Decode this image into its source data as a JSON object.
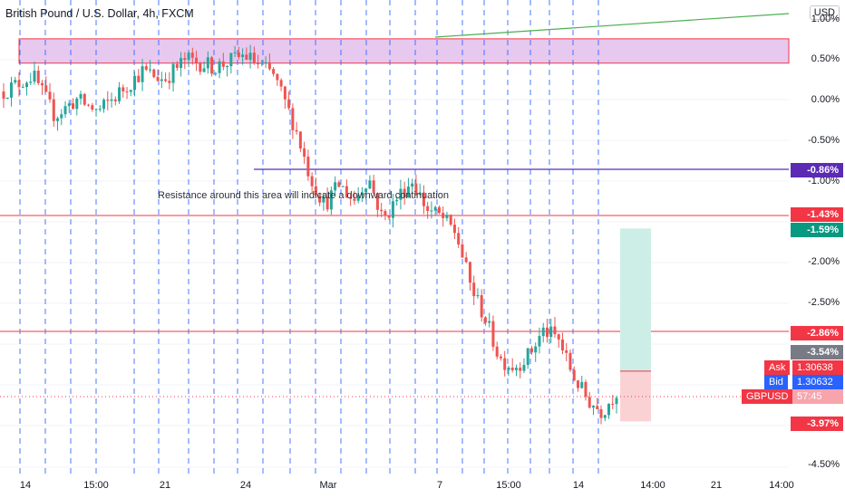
{
  "header": {
    "title": "British Pound / U.S. Dollar, 4h, FXCM",
    "currency_button": "USD"
  },
  "annotation": "Resistance around this area will indicate a downward continuation",
  "y_axis": {
    "labels": [
      "1.00%",
      "0.50%",
      "0.00%",
      "-0.50%",
      "-1.00%",
      "-2.00%",
      "-2.50%",
      "-4.50%"
    ],
    "values": [
      1.0,
      0.5,
      0.0,
      -0.5,
      -1.0,
      -2.0,
      -2.5,
      -4.5
    ]
  },
  "x_axis": {
    "labels": [
      "14",
      "15:00",
      "21",
      "24",
      "Mar",
      "7",
      "15:00",
      "14",
      "14:00",
      "21",
      "14:00"
    ]
  },
  "levels": {
    "purple": "-0.86%",
    "red_upper": "-1.43%",
    "green_target": "-1.59%",
    "red_lower": "-2.86%",
    "gray": "-3.54%",
    "stop": "-3.97%"
  },
  "price_badges": {
    "ask_label": "Ask",
    "ask_value": "1.30638",
    "bid_label": "Bid",
    "bid_value": "1.30632",
    "symbol_label": "GBPUSD",
    "countdown": "57:45"
  },
  "colors": {
    "up": "#26a69a",
    "down": "#ef5350",
    "purple_line": "#5b2bb5",
    "red_line": "#f23645",
    "zone_fill": "#e7c8ef",
    "zone_border": "#f23645",
    "vline": "#2962ff",
    "target_fill": "#cdeee6",
    "stop_fill": "#fbd2d4",
    "gray_badge": "#787b86",
    "ask": "#f23645",
    "bid": "#2962ff",
    "trend": "#4caf50"
  },
  "chart_data": {
    "type": "candlestick",
    "y_unit": "%",
    "ylim": [
      -4.6,
      1.05
    ],
    "candle_count": 170,
    "visible_candle_count": 160,
    "resistance_zone": [
      0.45,
      0.75
    ],
    "horizontal_levels": [
      -0.86,
      -1.43,
      -2.86
    ],
    "position": {
      "entry": -3.35,
      "target": -1.59,
      "stop": -3.97
    }
  }
}
